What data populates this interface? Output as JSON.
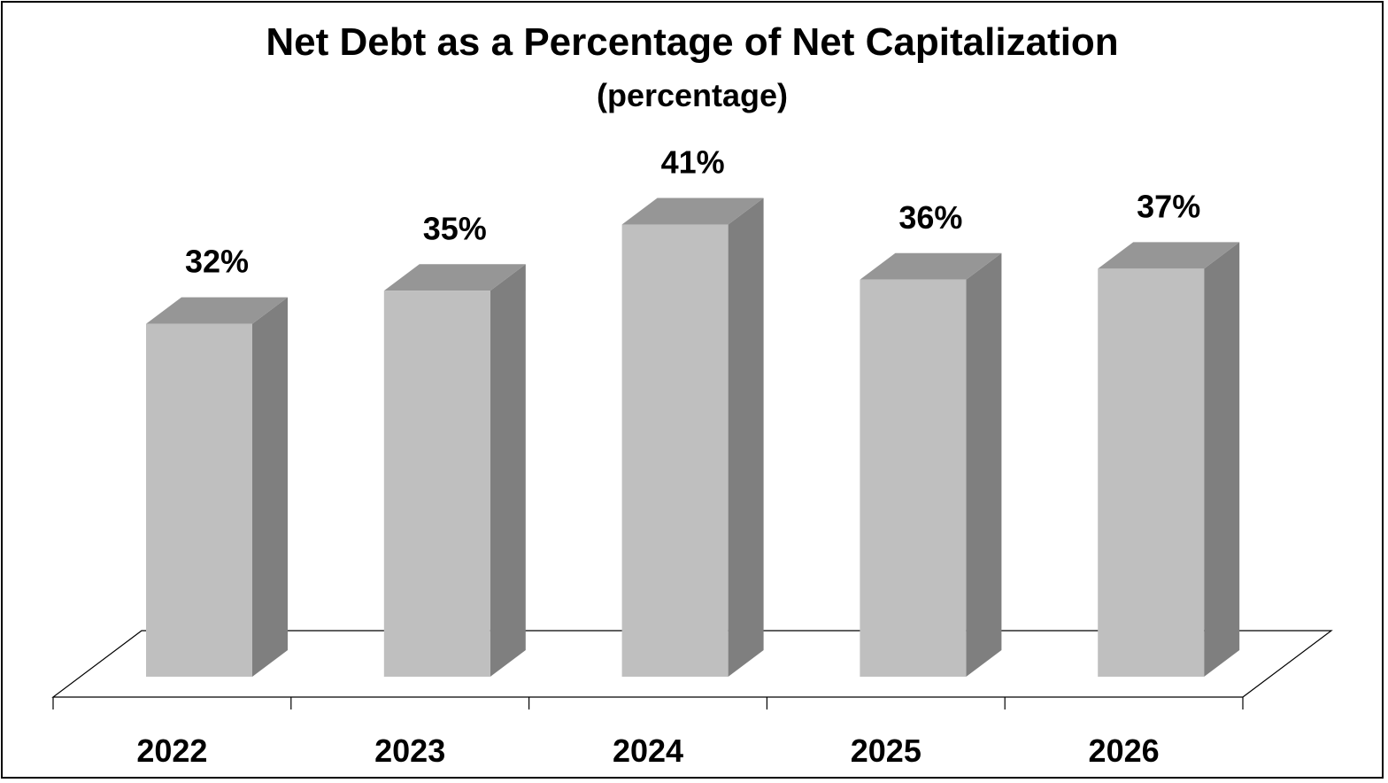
{
  "chart_data": {
    "type": "bar",
    "title": "Net Debt as a Percentage of Net Capitalization",
    "subtitle": "(percentage)",
    "categories": [
      "2022",
      "2023",
      "2024",
      "2025",
      "2026"
    ],
    "values": [
      32,
      35,
      41,
      36,
      37
    ],
    "value_labels": [
      "32%",
      "35%",
      "41%",
      "36%",
      "37%"
    ],
    "ylim": [
      0,
      45
    ],
    "style": "3d-column",
    "grid": false,
    "legend": "none",
    "colors": {
      "bar_front": "#bfbfbf",
      "bar_top": "#969696",
      "bar_side": "#7f7f7f",
      "floor_line": "#000000"
    }
  }
}
